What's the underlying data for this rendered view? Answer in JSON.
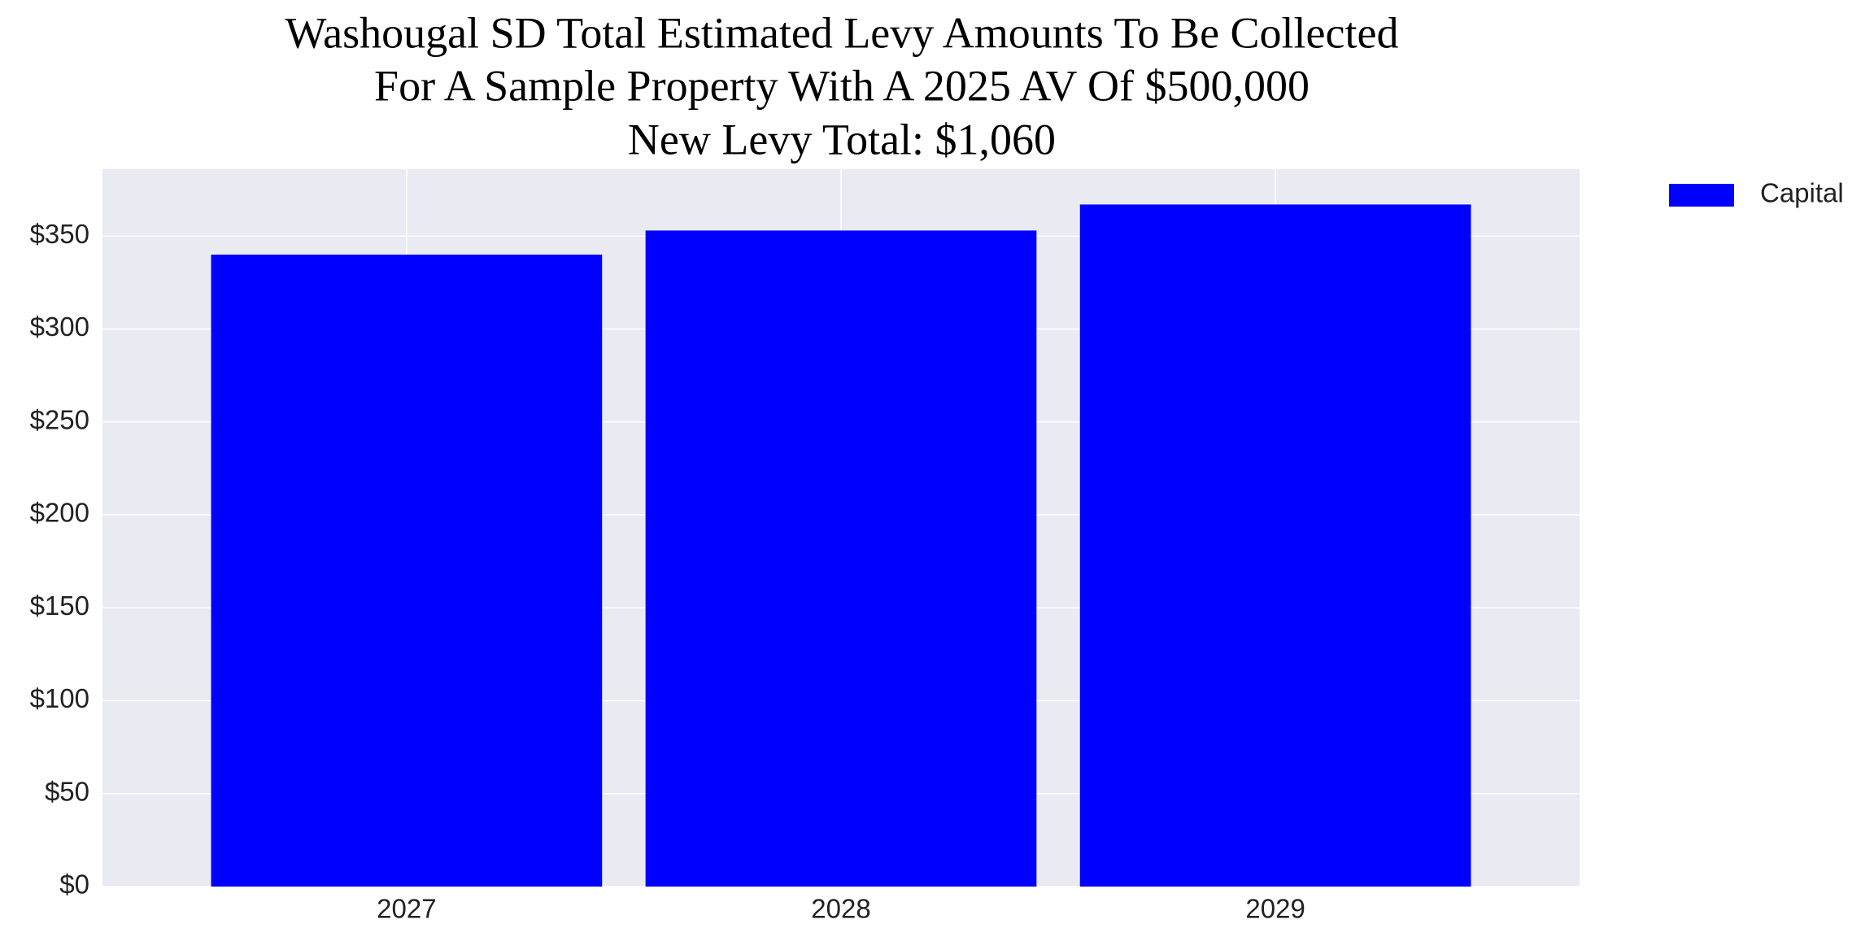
{
  "chart_data": {
    "type": "bar",
    "title": [
      "Washougal  SD Total Estimated Levy Amounts To Be Collected",
      "For A Sample Property With A 2025 AV Of $500,000",
      "New Levy Total: $1,060"
    ],
    "categories": [
      "2027",
      "2028",
      "2029"
    ],
    "series": [
      {
        "name": "Capital",
        "color": "#0000ff",
        "values": [
          340,
          353,
          367
        ]
      }
    ],
    "ylim": [
      0,
      386
    ],
    "yticks": [
      {
        "value": 0,
        "label": "$0"
      },
      {
        "value": 50,
        "label": "$50"
      },
      {
        "value": 100,
        "label": "$100"
      },
      {
        "value": 150,
        "label": "$150"
      },
      {
        "value": 200,
        "label": "$200"
      },
      {
        "value": 250,
        "label": "$250"
      },
      {
        "value": 300,
        "label": "$300"
      },
      {
        "value": 350,
        "label": "$350"
      }
    ],
    "grid": true,
    "legend": "outside-right"
  }
}
